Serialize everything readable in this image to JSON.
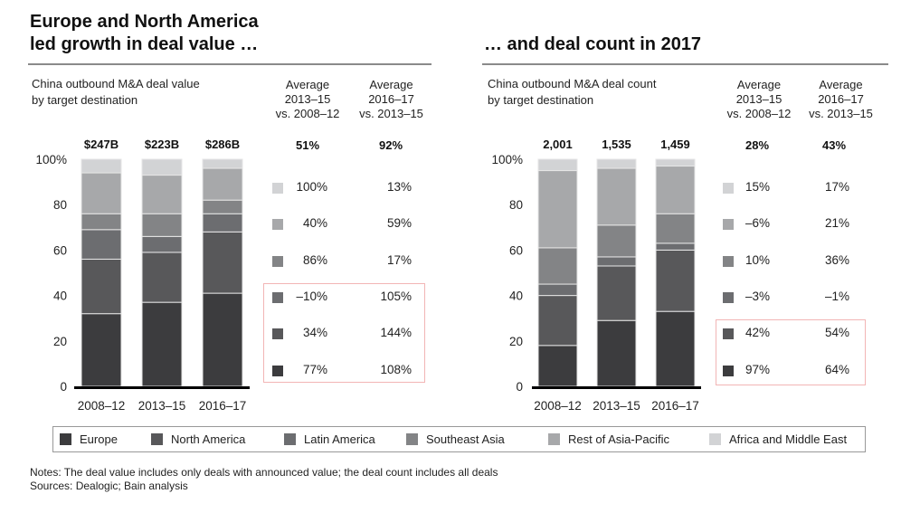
{
  "left": {
    "title_lines": [
      "Europe and North America",
      "led growth in deal value …"
    ],
    "subtitle_lines": [
      "China outbound M&A deal value",
      "by target destination"
    ],
    "col1_header": [
      "Average",
      "2013–15",
      "vs. 2008–12"
    ],
    "col2_header": [
      "Average",
      "2016–17",
      "vs. 2013–15"
    ],
    "col1_total": "51%",
    "col2_total": "92%",
    "rows": [
      {
        "series": "Africa and Middle East",
        "col1": "100%",
        "col2": "13%"
      },
      {
        "series": "Rest of Asia-Pacific",
        "col1": "40%",
        "col2": "59%"
      },
      {
        "series": "Southeast Asia",
        "col1": "86%",
        "col2": "17%"
      },
      {
        "series": "Latin America",
        "col1": "–10%",
        "col2": "105%"
      },
      {
        "series": "North America",
        "col1": "34%",
        "col2": "144%"
      },
      {
        "series": "Europe",
        "col1": "77%",
        "col2": "108%"
      }
    ]
  },
  "right": {
    "title_lines": [
      "… and deal count in 2017"
    ],
    "subtitle_lines": [
      "China outbound M&A deal count",
      "by target destination"
    ],
    "col1_header": [
      "Average",
      "2013–15",
      "vs. 2008–12"
    ],
    "col2_header": [
      "Average",
      "2016–17",
      "vs. 2013–15"
    ],
    "col1_total": "28%",
    "col2_total": "43%",
    "rows": [
      {
        "series": "Africa and Middle East",
        "col1": "15%",
        "col2": "17%"
      },
      {
        "series": "Rest of Asia-Pacific",
        "col1": "–6%",
        "col2": "21%"
      },
      {
        "series": "Southeast Asia",
        "col1": "10%",
        "col2": "36%"
      },
      {
        "series": "Latin America",
        "col1": "–3%",
        "col2": "–1%"
      },
      {
        "series": "North America",
        "col1": "42%",
        "col2": "54%"
      },
      {
        "series": "Europe",
        "col1": "97%",
        "col2": "64%"
      }
    ]
  },
  "colors": {
    "Europe": "#3c3c3e",
    "North America": "#58585a",
    "Latin America": "#6c6d70",
    "Southeast Asia": "#838486",
    "Rest of Asia-Pacific": "#a7a8aa",
    "Africa and Middle East": "#d2d3d5",
    "highlight_box": "#f2b5b5"
  },
  "legend": [
    "Europe",
    "North America",
    "Latin America",
    "Southeast Asia",
    "Rest of Asia-Pacific",
    "Africa and Middle East"
  ],
  "notes": [
    "Notes: The deal value includes only deals with announced value; the deal count includes all deals",
    "Sources: Dealogic; Bain analysis"
  ],
  "chart_data": [
    {
      "type": "bar",
      "stacked": true,
      "title": "China outbound M&A deal value by target destination",
      "xlabel": "",
      "ylabel": "",
      "ylim": [
        0,
        100
      ],
      "yticks": [
        "0",
        "20",
        "40",
        "60",
        "80",
        "100%"
      ],
      "categories": [
        "2008–12",
        "2013–15",
        "2016–17"
      ],
      "totals": [
        "$247B",
        "$223B",
        "$286B"
      ],
      "series": [
        {
          "name": "Europe",
          "values": [
            32,
            37,
            41
          ]
        },
        {
          "name": "North America",
          "values": [
            24,
            22,
            27
          ]
        },
        {
          "name": "Latin America",
          "values": [
            13,
            7,
            8
          ]
        },
        {
          "name": "Southeast Asia",
          "values": [
            7,
            10,
            6
          ]
        },
        {
          "name": "Rest of Asia-Pacific",
          "values": [
            18,
            17,
            14
          ]
        },
        {
          "name": "Africa and Middle East",
          "values": [
            6,
            7,
            4
          ]
        }
      ],
      "legend": "bottom"
    },
    {
      "type": "bar",
      "stacked": true,
      "title": "China outbound M&A deal count by target destination",
      "xlabel": "",
      "ylabel": "",
      "ylim": [
        0,
        100
      ],
      "yticks": [
        "0",
        "20",
        "40",
        "60",
        "80",
        "100%"
      ],
      "categories": [
        "2008–12",
        "2013–15",
        "2016–17"
      ],
      "totals": [
        "2,001",
        "1,535",
        "1,459"
      ],
      "series": [
        {
          "name": "Europe",
          "values": [
            18,
            29,
            33
          ]
        },
        {
          "name": "North America",
          "values": [
            22,
            24,
            27
          ]
        },
        {
          "name": "Latin America",
          "values": [
            5,
            4,
            3
          ]
        },
        {
          "name": "Southeast Asia",
          "values": [
            16,
            14,
            13
          ]
        },
        {
          "name": "Rest of Asia-Pacific",
          "values": [
            34,
            25,
            21
          ]
        },
        {
          "name": "Africa and Middle East",
          "values": [
            5,
            4,
            3
          ]
        }
      ],
      "legend": "bottom"
    }
  ]
}
